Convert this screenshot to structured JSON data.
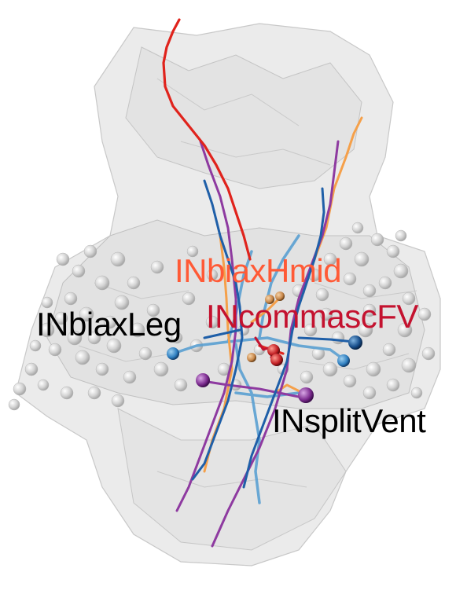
{
  "labels": {
    "hmid": {
      "text": "INbiaxHmid",
      "color": "#ff5a36"
    },
    "leg": {
      "text": "INbiaxLeg",
      "color": "#000000"
    },
    "comm": {
      "text": "INcommascFV",
      "color": "#c4122f"
    },
    "vent": {
      "text": "INsplitVent",
      "color": "#000000"
    }
  },
  "colors": {
    "background": "#ffffff",
    "mesh_fill": "#d9d9d9",
    "mesh_edge": "#bdbdbd",
    "soma_cloud": "#cfcfcf",
    "red_neuron": "#e0231c",
    "orange_neuron": "#f5a04a",
    "purple_neuron": "#8e3aa0",
    "blue_neuron": "#2470b4",
    "light_blue_neuron": "#5aa0d2",
    "dark_red_soma": "#b81d24",
    "tan_soma": "#c98a4a"
  }
}
